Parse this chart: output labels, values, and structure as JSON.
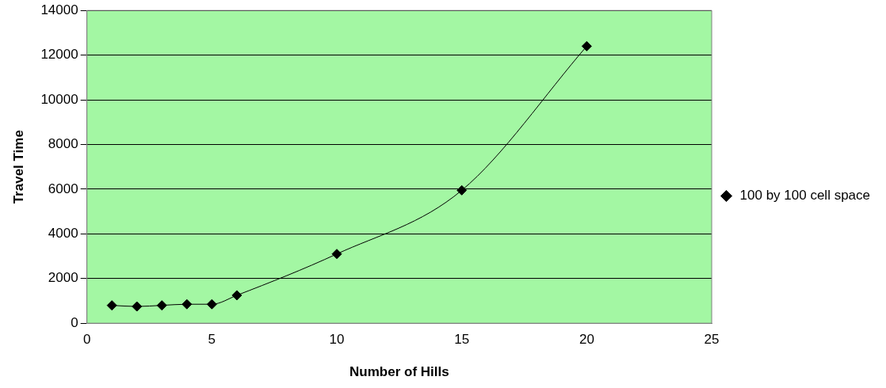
{
  "chart_data": {
    "type": "line",
    "xlabel": "Number of Hills",
    "ylabel": "Travel Time",
    "x": [
      1,
      2,
      3,
      4,
      5,
      6,
      10,
      15,
      20
    ],
    "series": [
      {
        "name": "100 by 100 cell space",
        "color": "#000000",
        "values": [
          800,
          750,
          800,
          850,
          850,
          1250,
          3100,
          5950,
          12400
        ]
      }
    ],
    "xlim": [
      0,
      25
    ],
    "xticks": [
      0,
      5,
      10,
      15,
      20,
      25
    ],
    "ylim": [
      0,
      14000
    ],
    "yticks": [
      0,
      2000,
      4000,
      6000,
      8000,
      10000,
      12000,
      14000
    ],
    "grid": "y",
    "legend": "right",
    "marker": "diamond",
    "line_style": "solid"
  }
}
